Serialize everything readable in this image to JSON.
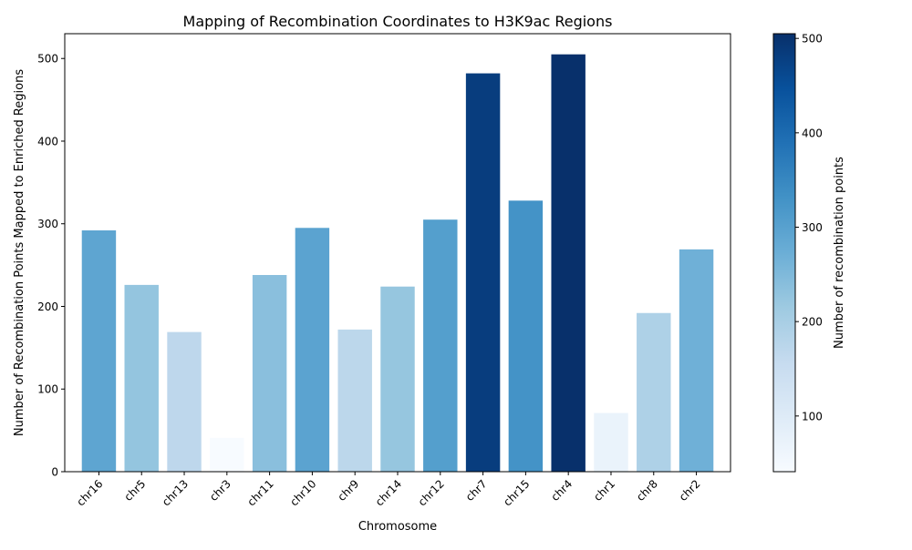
{
  "chart_data": {
    "type": "bar",
    "title": "Mapping of Recombination Coordinates to H3K9ac Regions",
    "xlabel": "Chromosome",
    "ylabel": "Number of Recombination Points Mapped to Enriched Regions",
    "categories": [
      "chr16",
      "chr5",
      "chr13",
      "chr3",
      "chr11",
      "chr10",
      "chr9",
      "chr14",
      "chr12",
      "chr7",
      "chr15",
      "chr4",
      "chr1",
      "chr8",
      "chr2"
    ],
    "values": [
      292,
      226,
      169,
      41,
      238,
      295,
      172,
      224,
      305,
      482,
      328,
      505,
      71,
      192,
      269
    ],
    "ylim": [
      0,
      530
    ],
    "yticks": [
      0,
      100,
      200,
      300,
      400,
      500
    ],
    "grid": false,
    "colormap": "Blues",
    "colorbar": {
      "label": "Number of recombination points",
      "range": [
        41,
        505
      ],
      "ticks": [
        100,
        200,
        300,
        400,
        500
      ]
    }
  }
}
